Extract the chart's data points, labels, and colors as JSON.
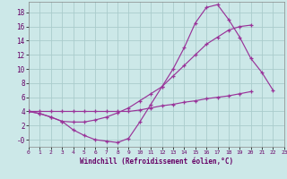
{
  "background_color": "#cce8e8",
  "grid_color": "#aacccc",
  "line_color": "#993399",
  "xlabel": "Windchill (Refroidissement éolien,°C)",
  "xlim": [
    0,
    23
  ],
  "ylim": [
    -1.0,
    19.5
  ],
  "xticks": [
    0,
    1,
    2,
    3,
    4,
    5,
    6,
    7,
    8,
    9,
    10,
    11,
    12,
    13,
    14,
    15,
    16,
    17,
    18,
    19,
    20,
    21,
    22,
    23
  ],
  "yticks": [
    0,
    2,
    4,
    6,
    8,
    10,
    12,
    14,
    16,
    18
  ],
  "ytick_labels": [
    "-0",
    "2",
    "4",
    "6",
    "8",
    "10",
    "12",
    "14",
    "16",
    "18"
  ],
  "line1_x": [
    0,
    1,
    2,
    3,
    4,
    5,
    6,
    7,
    8,
    9,
    10,
    11,
    12,
    13,
    14,
    15,
    16,
    17,
    18,
    19,
    20,
    21,
    22
  ],
  "line1_y": [
    4.0,
    3.7,
    3.2,
    2.6,
    1.4,
    0.6,
    0.0,
    -0.2,
    -0.4,
    0.2,
    2.5,
    5.0,
    7.5,
    10.0,
    13.0,
    16.5,
    18.7,
    19.1,
    17.0,
    14.5,
    11.5,
    9.5,
    7.0
  ],
  "line2_x": [
    0,
    1,
    2,
    3,
    4,
    5,
    6,
    7,
    8,
    9,
    10,
    11,
    12,
    13,
    14,
    15,
    16,
    17,
    18,
    19,
    20,
    21,
    22
  ],
  "line2_y": [
    4.0,
    3.7,
    3.2,
    2.6,
    2.5,
    2.5,
    2.8,
    3.2,
    3.8,
    4.5,
    5.5,
    6.5,
    7.5,
    9.0,
    10.5,
    12.0,
    13.5,
    14.5,
    15.5,
    16.0,
    16.2,
    null,
    null
  ],
  "line3_x": [
    0,
    1,
    2,
    3,
    4,
    5,
    6,
    7,
    8,
    9,
    10,
    11,
    12,
    13,
    14,
    15,
    16,
    17,
    18,
    19,
    20,
    21,
    22
  ],
  "line3_y": [
    4.0,
    4.0,
    4.0,
    4.0,
    4.0,
    4.0,
    4.0,
    4.0,
    4.0,
    4.0,
    4.2,
    4.5,
    4.8,
    5.0,
    5.3,
    5.5,
    5.8,
    6.0,
    6.2,
    6.5,
    6.8,
    null,
    null
  ]
}
